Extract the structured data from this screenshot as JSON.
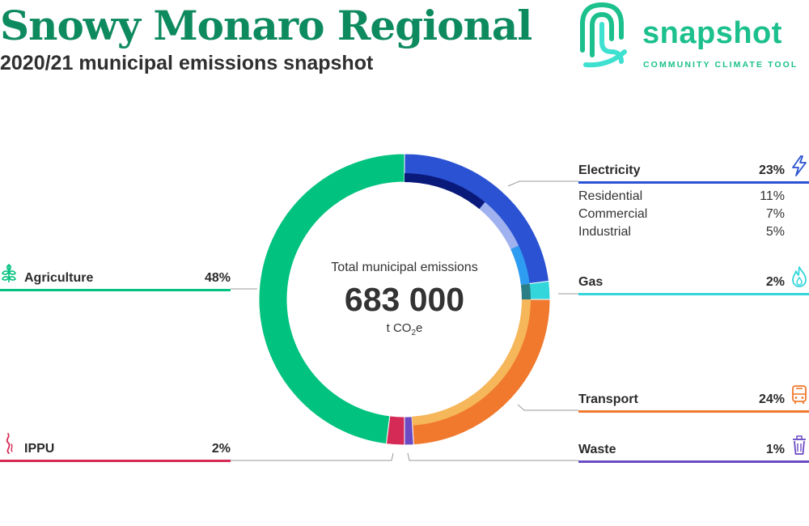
{
  "header": {
    "title": "Snowy Monaro Regional",
    "subtitle": "2020/21 municipal emissions snapshot"
  },
  "logo": {
    "word": "snapshot",
    "tagline": "COMMUNITY CLIMATE TOOL",
    "color": "#1cc08c",
    "icon": "snapshot-swirl-icon"
  },
  "center": {
    "label": "Total municipal emissions",
    "value": "683 000",
    "unit_main": "t CO",
    "unit_sub": "2",
    "unit_end": "e"
  },
  "categories": {
    "electricity": {
      "label": "Electricity",
      "pct": "23%",
      "color": "#2a52d3",
      "icon": "lightning-icon"
    },
    "gas": {
      "label": "Gas",
      "pct": "2%",
      "color": "#32d6db",
      "icon": "flame-icon"
    },
    "transport": {
      "label": "Transport",
      "pct": "24%",
      "color": "#f0792e",
      "icon": "bus-icon"
    },
    "waste": {
      "label": "Waste",
      "pct": "1%",
      "color": "#6a4bc4",
      "icon": "trash-bin-icon"
    },
    "agriculture": {
      "label": "Agriculture",
      "pct": "48%",
      "color": "#02c27f",
      "icon": "plant-icon"
    },
    "ippu": {
      "label": "IPPU",
      "pct": "2%",
      "color": "#d42a55",
      "icon": "smoke-icon"
    }
  },
  "electricity_breakdown": [
    {
      "label": "Residential",
      "pct": "11%"
    },
    {
      "label": "Commercial",
      "pct": "7%"
    },
    {
      "label": "Industrial",
      "pct": "5%"
    }
  ],
  "chart_data": {
    "type": "pie",
    "title": "2020/21 municipal emissions snapshot",
    "total": 683000,
    "unit": "t CO2e",
    "slices": [
      {
        "name": "Electricity",
        "value": 23,
        "color": "#2a52d3",
        "subcategories": [
          {
            "name": "Residential",
            "value": 11
          },
          {
            "name": "Commercial",
            "value": 7
          },
          {
            "name": "Industrial",
            "value": 5
          }
        ]
      },
      {
        "name": "Gas",
        "value": 2,
        "color": "#32d6db"
      },
      {
        "name": "Transport",
        "value": 24,
        "color": "#f0792e"
      },
      {
        "name": "Waste",
        "value": 1,
        "color": "#6a4bc4"
      },
      {
        "name": "IPPU",
        "value": 2,
        "color": "#d42a55"
      },
      {
        "name": "Agriculture",
        "value": 48,
        "color": "#02c27f"
      }
    ],
    "inner_rings": [
      {
        "name": "Residential",
        "value": 11,
        "color": "#0a1a7a"
      },
      {
        "name": "Commercial",
        "value": 7,
        "color": "#9fb2ef"
      },
      {
        "name": "Industrial",
        "value": 5,
        "color": "#2e9cf0"
      },
      {
        "name": "Gas",
        "value": 2,
        "color": "#2a7f86"
      },
      {
        "name": "Transport",
        "value": 24,
        "color": "#f6b65a"
      }
    ]
  }
}
